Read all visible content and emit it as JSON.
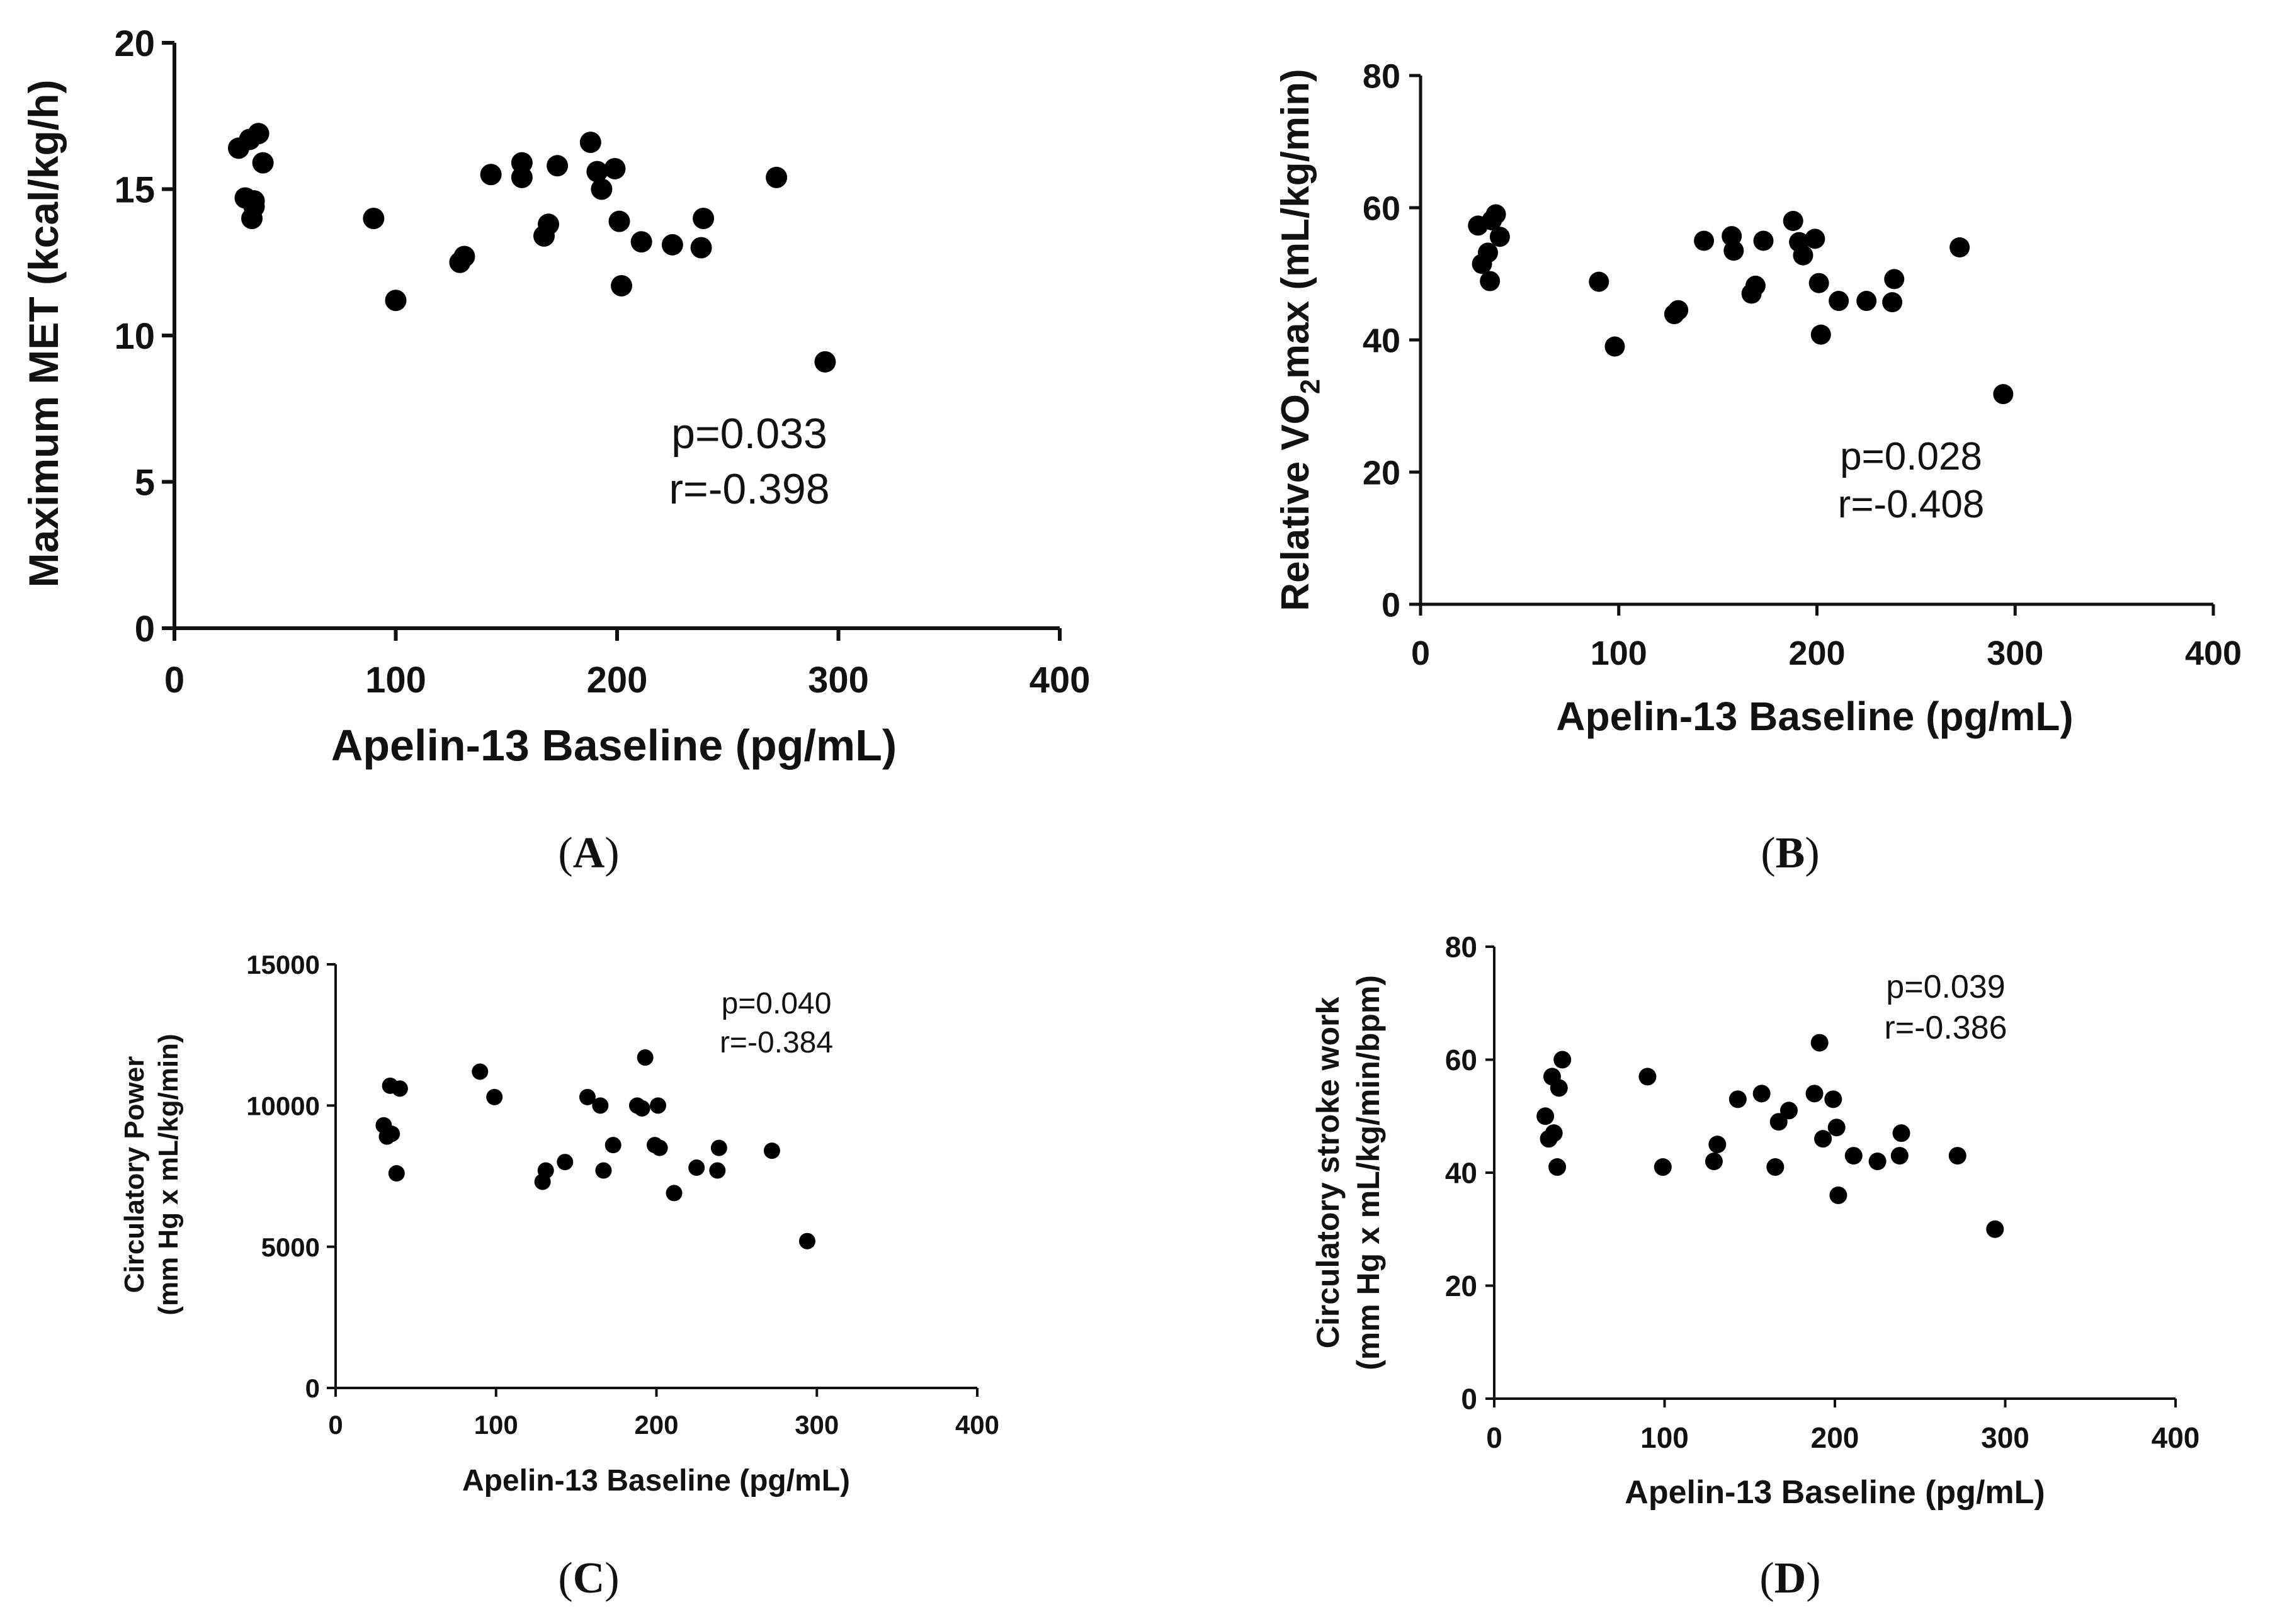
{
  "chart_data": [
    {
      "type": "scatter",
      "panel_label": "A",
      "xlabel": "Apelin-13 Baseline (pg/mL)",
      "ylabel": {
        "pre": "Maximum MET (kcal/kg/h)",
        "sub": "",
        "post": ""
      },
      "ylabel_lines": [],
      "xlim": [
        0,
        400
      ],
      "ylim": [
        0,
        20
      ],
      "xticks": [
        0,
        100,
        200,
        300,
        400
      ],
      "yticks": [
        0,
        5,
        10,
        15,
        20
      ],
      "annotation": [
        "p=0.033",
        "r=-0.398"
      ],
      "annotation_position": "center-right",
      "x": [
        29,
        32,
        34,
        36,
        35,
        38,
        40,
        36,
        90,
        100,
        129,
        131,
        143,
        157,
        157,
        167,
        169,
        173,
        188,
        191,
        193,
        199,
        201,
        202,
        211,
        225,
        238,
        239,
        272,
        294
      ],
      "y": [
        16.4,
        14.7,
        16.7,
        14.6,
        14.0,
        16.9,
        15.9,
        14.4,
        14.0,
        11.2,
        12.5,
        12.7,
        15.5,
        15.9,
        15.4,
        13.4,
        13.8,
        15.8,
        16.6,
        15.6,
        15.0,
        15.7,
        13.9,
        11.7,
        13.2,
        13.1,
        13.0,
        14.0,
        15.4,
        9.1
      ]
    },
    {
      "type": "scatter",
      "panel_label": "B",
      "xlabel": "Apelin-13 Baseline (pg/mL)",
      "ylabel": {
        "pre": "Relative VO",
        "sub": "2",
        "post": "max (mL/kg/min)"
      },
      "ylabel_lines": [],
      "xlim": [
        0,
        400
      ],
      "ylim": [
        0,
        80
      ],
      "xticks": [
        0,
        100,
        200,
        300,
        400
      ],
      "yticks": [
        0,
        20,
        40,
        60,
        80
      ],
      "annotation": [
        "p=0.028",
        "r=-0.408"
      ],
      "annotation_position": "center-right",
      "x": [
        29,
        31,
        34,
        35,
        36,
        38,
        40,
        90,
        98,
        128,
        130,
        143,
        157,
        158,
        167,
        169,
        173,
        188,
        191,
        193,
        199,
        201,
        202,
        211,
        225,
        238,
        239,
        272,
        294
      ],
      "y": [
        57.3,
        51.5,
        53.2,
        48.9,
        58.1,
        59.0,
        55.6,
        48.8,
        39.0,
        43.9,
        44.5,
        55.0,
        55.7,
        53.5,
        47.0,
        48.2,
        55.0,
        58.0,
        54.8,
        52.8,
        55.3,
        48.6,
        40.8,
        45.9,
        45.9,
        45.7,
        49.2,
        54.0,
        31.8
      ]
    },
    {
      "type": "scatter",
      "panel_label": "C",
      "xlabel": "Apelin-13 Baseline (pg/mL)",
      "ylabel": {
        "pre": "",
        "sub": "",
        "post": ""
      },
      "ylabel_lines": [
        "Circulatory Power",
        "(mm Hg x mL/kg/min)"
      ],
      "xlim": [
        0,
        400
      ],
      "ylim": [
        0,
        15000
      ],
      "xticks": [
        0,
        100,
        200,
        300,
        400
      ],
      "yticks": [
        0,
        5000,
        10000,
        15000
      ],
      "annotation": [
        "p=0.040",
        "r=-0.384"
      ],
      "annotation_position": "top-right",
      "x": [
        30,
        32,
        34,
        35,
        38,
        40,
        90,
        99,
        129,
        131,
        143,
        157,
        165,
        167,
        173,
        188,
        191,
        193,
        199,
        201,
        202,
        211,
        225,
        238,
        239,
        272,
        294
      ],
      "y": [
        9300,
        8900,
        10700,
        9000,
        7600,
        10600,
        11200,
        10300,
        7300,
        7700,
        8000,
        10300,
        10000,
        7700,
        8600,
        10000,
        9900,
        11700,
        8600,
        10000,
        8500,
        6900,
        7800,
        7700,
        8500,
        8400,
        5200
      ]
    },
    {
      "type": "scatter",
      "panel_label": "D",
      "xlabel": "Apelin-13 Baseline (pg/mL)",
      "ylabel": {
        "pre": "",
        "sub": "",
        "post": ""
      },
      "ylabel_lines": [
        "Circulatory stroke work",
        "(mm Hg x mL/kg/min/bpm)"
      ],
      "xlim": [
        0,
        400
      ],
      "ylim": [
        0,
        80
      ],
      "xticks": [
        0,
        100,
        200,
        300,
        400
      ],
      "yticks": [
        0,
        20,
        40,
        60,
        80
      ],
      "annotation": [
        "p=0.039",
        "r=-0.386"
      ],
      "annotation_position": "top-right",
      "x": [
        30,
        32,
        34,
        35,
        37,
        38,
        40,
        90,
        99,
        129,
        131,
        143,
        157,
        165,
        167,
        173,
        188,
        191,
        193,
        199,
        201,
        202,
        211,
        225,
        238,
        239,
        272,
        294
      ],
      "y": [
        50,
        46,
        57,
        47,
        41,
        55,
        60,
        57,
        41,
        42,
        45,
        53,
        54,
        41,
        49,
        51,
        54,
        63,
        46,
        53,
        48,
        36,
        43,
        42,
        43,
        47,
        43,
        30
      ]
    }
  ]
}
